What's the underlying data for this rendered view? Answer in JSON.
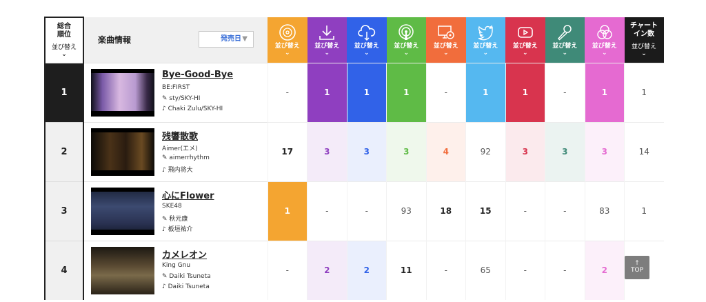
{
  "header": {
    "rank_label_1": "総合",
    "rank_label_2": "順位",
    "sort_label": "並び替え",
    "song_info_label": "楽曲情報",
    "release_select": "発売日",
    "chart_label_1": "チャート",
    "chart_label_2": "イン数",
    "services": [
      {
        "icon": "cd-icon",
        "color": "#f4a531",
        "label": "並び替え"
      },
      {
        "icon": "download-icon",
        "color": "#8f3fc0",
        "label": "並び替え"
      },
      {
        "icon": "cloud-streaming-icon",
        "color": "#3162e8",
        "label": "並び替え"
      },
      {
        "icon": "podcast-icon",
        "color": "#5fbb46",
        "label": "並び替え"
      },
      {
        "icon": "pc-cd-icon",
        "color": "#f16d3c",
        "label": "並び替え"
      },
      {
        "icon": "twitter-icon",
        "color": "#55b8f0",
        "label": "並び替え"
      },
      {
        "icon": "youtube-icon",
        "color": "#d8344e",
        "label": "並び替え"
      },
      {
        "icon": "karaoke-mic-icon",
        "color": "#3f8a78",
        "label": "並び替え"
      },
      {
        "icon": "circles-icon",
        "color": "#e56ad1",
        "label": "並び替え"
      }
    ]
  },
  "rows": [
    {
      "rank": "1",
      "title": "Bye-Good-Bye",
      "artist": "BE:FIRST",
      "lyricist": "sty/SKY-HI",
      "composer": "Chaki Zulu/SKY-HI",
      "values": [
        "-",
        "1",
        "1",
        "1",
        "-",
        "1",
        "1",
        "-",
        "1"
      ],
      "chart_in": "1"
    },
    {
      "rank": "2",
      "title": "残響散歌",
      "artist": "Aimer(エメ)",
      "lyricist": "aimerrhythm",
      "composer": "飛内将大",
      "values": [
        "17",
        "3",
        "3",
        "3",
        "4",
        "92",
        "3",
        "3",
        "3"
      ],
      "chart_in": "14"
    },
    {
      "rank": "3",
      "title": "心にFlower",
      "artist": "SKE48",
      "lyricist": "秋元康",
      "composer": "板垣祐介",
      "values": [
        "1",
        "-",
        "-",
        "93",
        "18",
        "15",
        "-",
        "-",
        "83"
      ],
      "chart_in": "1"
    },
    {
      "rank": "4",
      "title": "カメレオン",
      "artist": "King Gnu",
      "lyricist": "Daiki Tsuneta",
      "composer": "Daiki Tsuneta",
      "values": [
        "-",
        "2",
        "2",
        "11",
        "-",
        "65",
        "-",
        "-",
        "2"
      ],
      "chart_in": ""
    }
  ],
  "top_button": "TOP"
}
